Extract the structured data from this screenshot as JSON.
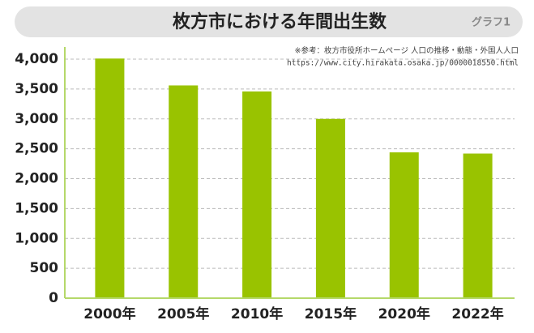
{
  "chart_data": {
    "type": "bar",
    "title": "枚方市における年間出生数",
    "label": "グラフ1",
    "annotations": [
      "※参考：枚方市役所ホームページ 人口の推移・動態・外国人人口",
      "https://www.city.hirakata.osaka.jp/0000018550.html"
    ],
    "categories": [
      "2000年",
      "2005年",
      "2010年",
      "2015年",
      "2020年",
      "2022年"
    ],
    "values": [
      4010,
      3560,
      3460,
      3000,
      2440,
      2420
    ],
    "color": "#99c300",
    "ylim": [
      0,
      4000
    ],
    "yticks": [
      0,
      500,
      {
        "value": 1000,
        "label": "1,000"
      },
      {
        "value": 1500,
        "label": "1,500"
      },
      {
        "value": 2000,
        "label": "2,000"
      },
      {
        "value": 2500,
        "label": "2,500"
      },
      {
        "value": 3000,
        "label": "3,000"
      },
      {
        "value": 3500,
        "label": "3,500"
      },
      {
        "value": 4000,
        "label": "4,000"
      }
    ],
    "grid": true
  }
}
